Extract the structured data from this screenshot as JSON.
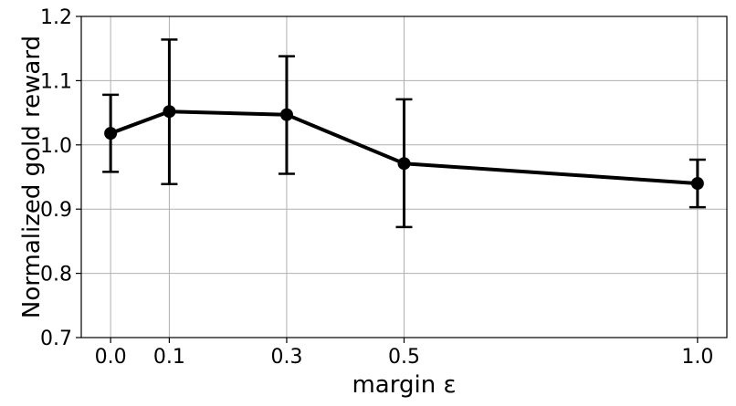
{
  "chart_data": {
    "type": "line",
    "xlabel": "margin ε",
    "ylabel": "Normalized gold reward",
    "x": [
      0.0,
      0.1,
      0.3,
      0.5,
      1.0
    ],
    "x_tick_labels": [
      "0.0",
      "0.1",
      "0.3",
      "0.5",
      "1.0"
    ],
    "xlim": [
      -0.05,
      1.05
    ],
    "ylim": [
      0.7,
      1.2
    ],
    "y_ticks": [
      0.7,
      0.8,
      0.9,
      1.0,
      1.1,
      1.2
    ],
    "y_tick_labels": [
      "0.7",
      "0.8",
      "0.9",
      "1.0",
      "1.1",
      "1.2"
    ],
    "grid": true,
    "series": [
      {
        "values": [
          1.018,
          1.052,
          1.047,
          0.971,
          0.94
        ],
        "error_low": [
          0.958,
          0.939,
          0.955,
          0.872,
          0.903
        ],
        "error_high": [
          1.078,
          1.164,
          1.138,
          1.071,
          0.977
        ],
        "color": "#000000"
      }
    ]
  }
}
